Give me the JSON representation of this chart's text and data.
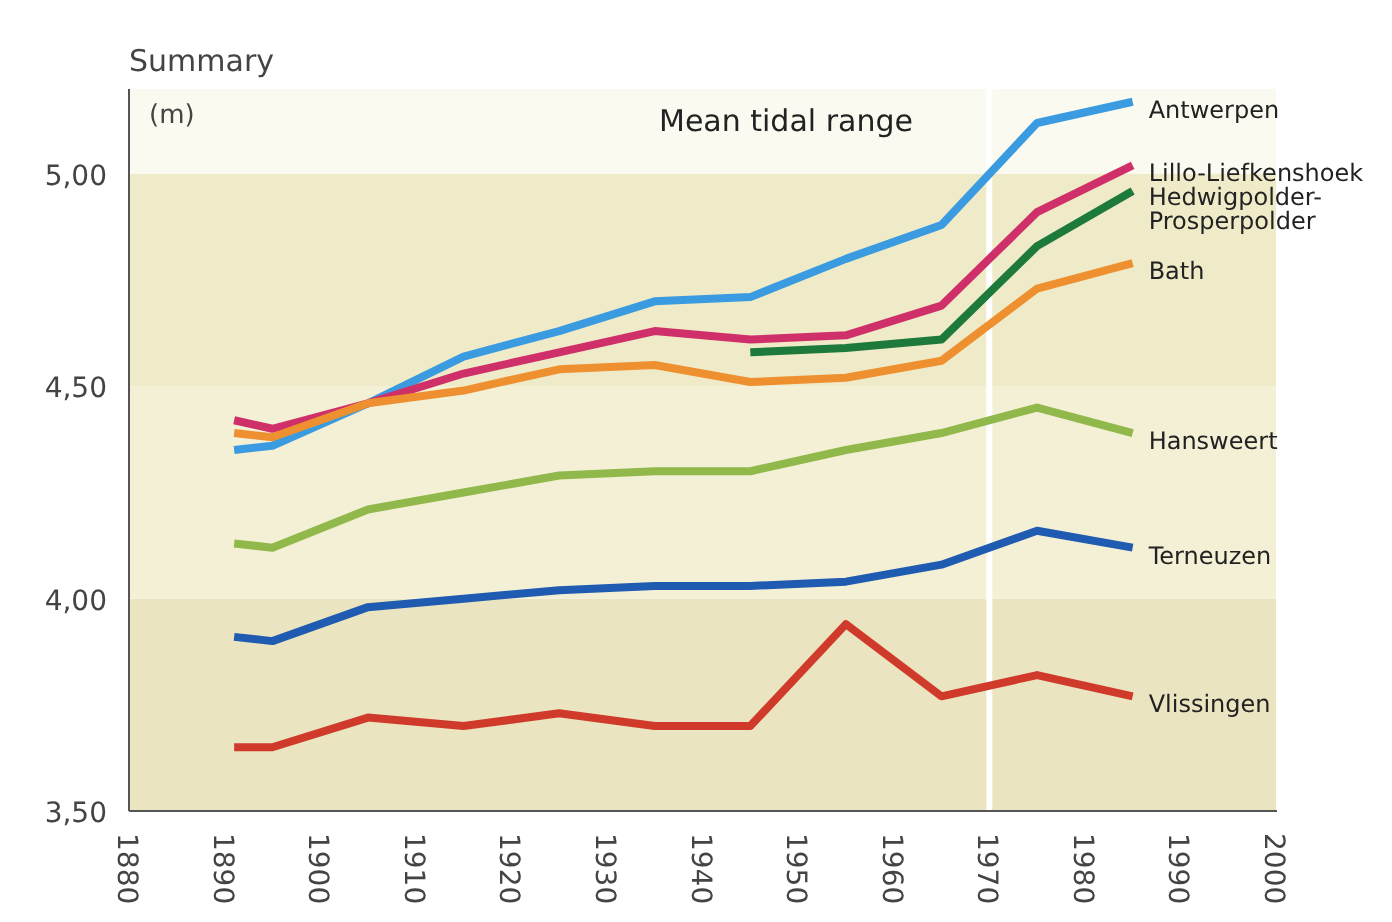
{
  "chart_data": {
    "type": "line",
    "title": "Summary",
    "subtitle": "Mean tidal range",
    "ylabel": "(m)",
    "x": [
      1891,
      1895,
      1905,
      1915,
      1925,
      1935,
      1945,
      1955,
      1965,
      1975,
      1985
    ],
    "series": [
      {
        "name": "Antwerpen",
        "color": "#3a9be0",
        "values": [
          4.35,
          4.36,
          4.46,
          4.57,
          4.63,
          4.7,
          4.71,
          4.8,
          4.88,
          5.12,
          5.17
        ]
      },
      {
        "name": "Lillo-Liefkenshoek",
        "color": "#d0306a",
        "values": [
          4.42,
          4.4,
          4.46,
          4.53,
          4.58,
          4.63,
          4.61,
          4.62,
          4.69,
          4.91,
          5.02
        ]
      },
      {
        "name": "Hedwigpolder-\nProsperpolder",
        "color": "#1e7a3a",
        "values": [
          null,
          null,
          null,
          null,
          null,
          null,
          4.58,
          4.59,
          4.61,
          4.83,
          4.96
        ]
      },
      {
        "name": "Bath",
        "color": "#ee9030",
        "values": [
          4.39,
          4.38,
          4.46,
          4.49,
          4.54,
          4.55,
          4.51,
          4.52,
          4.56,
          4.73,
          4.79
        ]
      },
      {
        "name": "Hansweert",
        "color": "#90b84a",
        "values": [
          4.13,
          4.12,
          4.21,
          4.25,
          4.29,
          4.3,
          4.3,
          4.35,
          4.39,
          4.45,
          4.39
        ]
      },
      {
        "name": "Terneuzen",
        "color": "#1f5bb0",
        "values": [
          3.91,
          3.9,
          3.98,
          4.0,
          4.02,
          4.03,
          4.03,
          4.04,
          4.08,
          4.16,
          4.12
        ]
      },
      {
        "name": "Vlissingen",
        "color": "#d03a2a",
        "values": [
          3.65,
          3.65,
          3.72,
          3.7,
          3.73,
          3.7,
          3.7,
          3.94,
          3.77,
          3.82,
          3.77
        ]
      }
    ],
    "xlim": [
      1880,
      2000
    ],
    "xticks": [
      1880,
      1890,
      1900,
      1910,
      1920,
      1930,
      1940,
      1950,
      1960,
      1970,
      1980,
      1990,
      2000
    ],
    "ylim": [
      3.5,
      5.2
    ],
    "yticks": [
      {
        "value": 3.5,
        "label": "3,50"
      },
      {
        "value": 4.0,
        "label": "4,00"
      },
      {
        "value": 4.5,
        "label": "4,50"
      },
      {
        "value": 5.0,
        "label": "5,00"
      }
    ],
    "bands": [
      {
        "axis": "y",
        "from": 3.5,
        "to": 4.0,
        "color": "#ebe4c0"
      },
      {
        "axis": "y",
        "from": 4.0,
        "to": 4.5,
        "color": "#f4f0d6"
      },
      {
        "axis": "y",
        "from": 4.5,
        "to": 5.0,
        "color": "#efebc8"
      },
      {
        "axis": "y",
        "from": 5.0,
        "to": 5.2,
        "color": "#fbfaf0"
      }
    ],
    "ref_lines": [
      {
        "axis": "x",
        "value": 1970,
        "color": "#ffffff"
      }
    ],
    "marker": "none",
    "line_style": "solid"
  }
}
